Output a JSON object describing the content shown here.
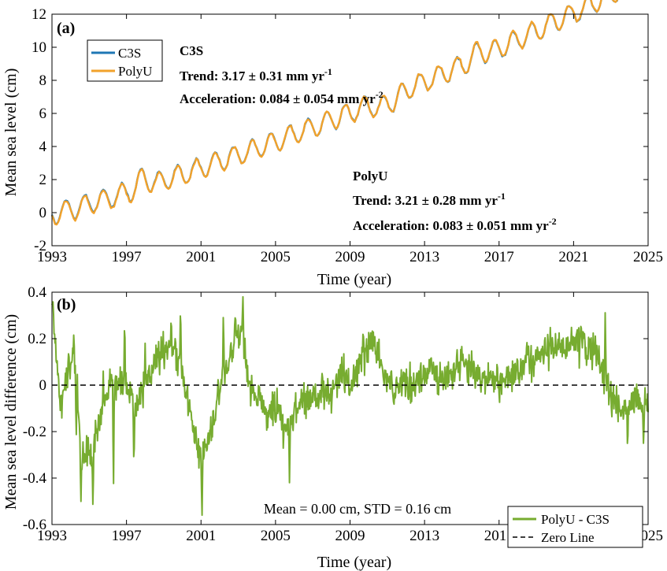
{
  "chart_data": [
    {
      "panel": "(a)",
      "type": "line",
      "xlabel": "Time (year)",
      "ylabel": "Mean sea level (cm)",
      "xlim": [
        1993,
        2025
      ],
      "ylim": [
        -2,
        12
      ],
      "xticks": [
        1993,
        1997,
        2001,
        2005,
        2009,
        2013,
        2017,
        2021,
        2025
      ],
      "yticks": [
        -2,
        0,
        2,
        4,
        6,
        8,
        10,
        12
      ],
      "grid": false,
      "legend": {
        "placement": "top-left",
        "entries": [
          "C3S",
          "PolyU"
        ]
      },
      "series": [
        {
          "name": "C3S",
          "color": "#1f77b4",
          "model": {
            "base_1993": -0.1,
            "trend_mm_per_yr": 3.17,
            "acceleration_mm_per_yr2": 0.084,
            "seasonal_amplitude_cm": 0.62,
            "seasonal_peak_month": 10
          },
          "anomalies": [
            {
              "year": 1997.9,
              "offset_cm": 0.6
            },
            {
              "year": 2010.6,
              "offset_cm": -0.5
            },
            {
              "year": 2011.4,
              "offset_cm": -0.4
            },
            {
              "year": 2015.9,
              "offset_cm": 0.4
            },
            {
              "year": 2023.9,
              "offset_cm": 0.5
            }
          ]
        },
        {
          "name": "PolyU",
          "color": "#f2a22b",
          "model": {
            "base_1993": -0.15,
            "trend_mm_per_yr": 3.21,
            "acceleration_mm_per_yr2": 0.083,
            "seasonal_amplitude_cm": 0.62,
            "seasonal_peak_month": 10
          },
          "anomalies": [
            {
              "year": 1997.9,
              "offset_cm": 0.6
            },
            {
              "year": 2010.6,
              "offset_cm": -0.5
            },
            {
              "year": 2011.4,
              "offset_cm": -0.4
            },
            {
              "year": 2015.9,
              "offset_cm": 0.4
            },
            {
              "year": 2023.9,
              "offset_cm": 0.5
            }
          ]
        }
      ],
      "annotations": [
        {
          "id": "c3s",
          "color": "#1f77b4",
          "lines": [
            "C3S",
            "Trend: 3.17 ± 0.31 mm yr",
            "Acceleration: 0.084 ± 0.054 mm yr"
          ],
          "superscripts": [
            "",
            "-1",
            "-2"
          ]
        },
        {
          "id": "polyu",
          "color": "#f2a22b",
          "lines": [
            "PolyU",
            "Trend: 3.21 ± 0.28 mm yr",
            "Acceleration: 0.083 ± 0.051 mm yr"
          ],
          "superscripts": [
            "",
            "-1",
            "-2"
          ]
        }
      ]
    },
    {
      "panel": "(b)",
      "type": "line",
      "xlabel": "Time (year)",
      "ylabel": "Mean sea level difference (cm)",
      "xlim": [
        1993,
        2025
      ],
      "ylim": [
        -0.6,
        0.4
      ],
      "xticks": [
        1993,
        1997,
        2001,
        2005,
        2009,
        2013,
        2017,
        2021,
        2025
      ],
      "yticks": [
        -0.6,
        -0.4,
        -0.2,
        0,
        0.2,
        0.4
      ],
      "grid": false,
      "legend": {
        "placement": "bottom-right",
        "entries": [
          "PolyU - C3S",
          "Zero Line"
        ]
      },
      "series": [
        {
          "name": "PolyU - C3S",
          "color": "#77ac30",
          "baseline_points": [
            {
              "x": 1993.0,
              "y": 0.34
            },
            {
              "x": 1993.2,
              "y": 0.15
            },
            {
              "x": 1993.5,
              "y": -0.1
            },
            {
              "x": 1993.8,
              "y": 0.05
            },
            {
              "x": 1994.2,
              "y": 0.15
            },
            {
              "x": 1994.6,
              "y": -0.3
            },
            {
              "x": 1995.0,
              "y": -0.32
            },
            {
              "x": 1995.4,
              "y": -0.22
            },
            {
              "x": 1995.8,
              "y": -0.1
            },
            {
              "x": 1996.2,
              "y": 0.05
            },
            {
              "x": 1996.6,
              "y": 0.02
            },
            {
              "x": 1997.0,
              "y": 0.0
            },
            {
              "x": 1997.5,
              "y": -0.1
            },
            {
              "x": 1998.0,
              "y": 0.0
            },
            {
              "x": 1998.5,
              "y": 0.1
            },
            {
              "x": 1999.0,
              "y": 0.15
            },
            {
              "x": 1999.5,
              "y": 0.15
            },
            {
              "x": 2000.0,
              "y": 0.05
            },
            {
              "x": 2000.5,
              "y": -0.15
            },
            {
              "x": 2000.9,
              "y": -0.3
            },
            {
              "x": 2001.2,
              "y": -0.28
            },
            {
              "x": 2001.5,
              "y": -0.22
            },
            {
              "x": 2001.9,
              "y": -0.05
            },
            {
              "x": 2002.4,
              "y": 0.1
            },
            {
              "x": 2002.8,
              "y": 0.2
            },
            {
              "x": 2003.2,
              "y": 0.22
            },
            {
              "x": 2003.6,
              "y": 0.0
            },
            {
              "x": 2004.0,
              "y": -0.05
            },
            {
              "x": 2004.5,
              "y": -0.12
            },
            {
              "x": 2005.0,
              "y": -0.1
            },
            {
              "x": 2005.5,
              "y": -0.2
            },
            {
              "x": 2006.0,
              "y": -0.12
            },
            {
              "x": 2006.5,
              "y": -0.05
            },
            {
              "x": 2007.0,
              "y": -0.05
            },
            {
              "x": 2007.5,
              "y": -0.02
            },
            {
              "x": 2008.0,
              "y": -0.05
            },
            {
              "x": 2008.5,
              "y": 0.05
            },
            {
              "x": 2009.0,
              "y": 0.0
            },
            {
              "x": 2009.5,
              "y": 0.1
            },
            {
              "x": 2010.0,
              "y": 0.18
            },
            {
              "x": 2010.4,
              "y": 0.18
            },
            {
              "x": 2010.8,
              "y": 0.05
            },
            {
              "x": 2011.3,
              "y": -0.02
            },
            {
              "x": 2011.8,
              "y": 0.02
            },
            {
              "x": 2012.5,
              "y": 0.0
            },
            {
              "x": 2013.0,
              "y": 0.05
            },
            {
              "x": 2013.5,
              "y": 0.05
            },
            {
              "x": 2014.0,
              "y": 0.03
            },
            {
              "x": 2014.5,
              "y": 0.05
            },
            {
              "x": 2015.0,
              "y": 0.1
            },
            {
              "x": 2015.5,
              "y": 0.08
            },
            {
              "x": 2016.0,
              "y": 0.03
            },
            {
              "x": 2016.5,
              "y": 0.05
            },
            {
              "x": 2017.0,
              "y": 0.0
            },
            {
              "x": 2017.5,
              "y": 0.05
            },
            {
              "x": 2018.0,
              "y": 0.05
            },
            {
              "x": 2018.5,
              "y": 0.1
            },
            {
              "x": 2019.0,
              "y": 0.12
            },
            {
              "x": 2019.5,
              "y": 0.15
            },
            {
              "x": 2020.0,
              "y": 0.18
            },
            {
              "x": 2020.5,
              "y": 0.15
            },
            {
              "x": 2021.0,
              "y": 0.18
            },
            {
              "x": 2021.5,
              "y": 0.17
            },
            {
              "x": 2022.0,
              "y": 0.15
            },
            {
              "x": 2022.4,
              "y": 0.1
            },
            {
              "x": 2022.8,
              "y": 0.0
            },
            {
              "x": 2023.3,
              "y": -0.1
            },
            {
              "x": 2023.8,
              "y": -0.1
            },
            {
              "x": 2024.3,
              "y": -0.05
            },
            {
              "x": 2024.7,
              "y": -0.1
            },
            {
              "x": 2025.0,
              "y": -0.08
            }
          ],
          "extremes": [
            {
              "x": 1993.05,
              "y": 0.36
            },
            {
              "x": 1994.3,
              "y": -0.22
            },
            {
              "x": 1994.55,
              "y": -0.51
            },
            {
              "x": 1995.2,
              "y": -0.52
            },
            {
              "x": 1995.75,
              "y": 0.06
            },
            {
              "x": 1996.3,
              "y": -0.44
            },
            {
              "x": 1996.9,
              "y": 0.27
            },
            {
              "x": 1997.4,
              "y": -0.35
            },
            {
              "x": 1998.0,
              "y": 0.18
            },
            {
              "x": 1999.4,
              "y": 0.28
            },
            {
              "x": 1999.9,
              "y": 0.34
            },
            {
              "x": 2001.05,
              "y": -0.57
            },
            {
              "x": 2002.2,
              "y": 0.3
            },
            {
              "x": 2003.25,
              "y": 0.38
            },
            {
              "x": 2005.75,
              "y": -0.42
            },
            {
              "x": 2007.5,
              "y": 0.05
            },
            {
              "x": 2009.7,
              "y": 0.22
            },
            {
              "x": 2021.4,
              "y": 0.26
            },
            {
              "x": 2022.7,
              "y": 0.32
            },
            {
              "x": 2023.9,
              "y": -0.27
            },
            {
              "x": 2024.75,
              "y": -0.25
            }
          ],
          "noise_amplitude_cm": 0.07
        },
        {
          "name": "Zero Line",
          "color": "#000000",
          "style": "dashed",
          "y": 0
        }
      ],
      "annotations": [
        {
          "id": "stats",
          "text": "Mean = 0.00 cm, STD = 0.16 cm"
        }
      ]
    }
  ]
}
